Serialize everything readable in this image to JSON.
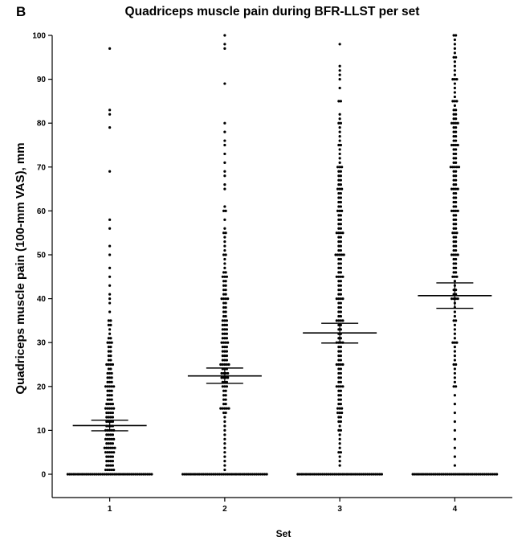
{
  "panel_letter": "B",
  "chart_data": {
    "type": "scatter",
    "subtype": "dot-plot with mean and 95% CI",
    "title": "Quadriceps muscle pain during BFR-LLST per set",
    "xlabel": "Set",
    "ylabel": "Quadriceps muscle pain (100-mm VAS), mm",
    "categories": [
      "1",
      "2",
      "3",
      "4"
    ],
    "ylim": [
      0,
      100
    ],
    "yticks": [
      0,
      10,
      20,
      30,
      40,
      50,
      60,
      70,
      80,
      90,
      100
    ],
    "grid": false,
    "legend": "none",
    "summary": [
      {
        "category": "1",
        "mean": 11.1,
        "ci_low": 9.9,
        "ci_high": 12.3
      },
      {
        "category": "2",
        "mean": 22.4,
        "ci_low": 20.7,
        "ci_high": 24.2
      },
      {
        "category": "3",
        "mean": 32.2,
        "ci_low": 29.9,
        "ci_high": 34.4
      },
      {
        "category": "4",
        "mean": 40.7,
        "ci_low": 37.8,
        "ci_high": 43.6
      }
    ],
    "series": [
      {
        "category": "1",
        "values": [
          [
            0,
            42
          ],
          [
            1,
            5
          ],
          [
            2,
            4
          ],
          [
            3,
            4
          ],
          [
            4,
            4
          ],
          [
            5,
            5
          ],
          [
            6,
            6
          ],
          [
            7,
            4
          ],
          [
            8,
            5
          ],
          [
            9,
            4
          ],
          [
            10,
            5
          ],
          [
            11,
            4
          ],
          [
            12,
            4
          ],
          [
            13,
            4
          ],
          [
            14,
            4
          ],
          [
            15,
            5
          ],
          [
            16,
            4
          ],
          [
            17,
            3
          ],
          [
            18,
            3
          ],
          [
            19,
            3
          ],
          [
            20,
            5
          ],
          [
            21,
            3
          ],
          [
            22,
            3
          ],
          [
            23,
            3
          ],
          [
            24,
            2
          ],
          [
            25,
            4
          ],
          [
            26,
            2
          ],
          [
            27,
            2
          ],
          [
            28,
            2
          ],
          [
            29,
            2
          ],
          [
            30,
            3
          ],
          [
            31,
            2
          ],
          [
            32,
            1
          ],
          [
            33,
            1
          ],
          [
            34,
            2
          ],
          [
            35,
            2
          ],
          [
            37,
            1
          ],
          [
            39,
            1
          ],
          [
            40,
            1
          ],
          [
            41,
            1
          ],
          [
            43,
            1
          ],
          [
            45,
            1
          ],
          [
            47,
            1
          ],
          [
            50,
            1
          ],
          [
            52,
            1
          ],
          [
            56,
            1
          ],
          [
            58,
            1
          ],
          [
            69,
            1
          ],
          [
            79,
            1
          ],
          [
            82,
            1
          ],
          [
            83,
            1
          ],
          [
            97,
            1
          ]
        ]
      },
      {
        "category": "2",
        "values": [
          [
            0,
            42
          ],
          [
            1,
            1
          ],
          [
            2,
            1
          ],
          [
            3,
            1
          ],
          [
            4,
            1
          ],
          [
            5,
            1
          ],
          [
            6,
            1
          ],
          [
            7,
            1
          ],
          [
            8,
            1
          ],
          [
            9,
            1
          ],
          [
            10,
            1
          ],
          [
            11,
            1
          ],
          [
            12,
            1
          ],
          [
            13,
            1
          ],
          [
            14,
            2
          ],
          [
            15,
            5
          ],
          [
            16,
            2
          ],
          [
            17,
            2
          ],
          [
            18,
            2
          ],
          [
            19,
            2
          ],
          [
            20,
            3
          ],
          [
            21,
            3
          ],
          [
            22,
            4
          ],
          [
            23,
            4
          ],
          [
            24,
            3
          ],
          [
            25,
            5
          ],
          [
            26,
            3
          ],
          [
            27,
            3
          ],
          [
            28,
            3
          ],
          [
            29,
            3
          ],
          [
            30,
            4
          ],
          [
            31,
            3
          ],
          [
            32,
            3
          ],
          [
            33,
            3
          ],
          [
            34,
            3
          ],
          [
            35,
            3
          ],
          [
            36,
            2
          ],
          [
            37,
            2
          ],
          [
            38,
            2
          ],
          [
            39,
            2
          ],
          [
            40,
            4
          ],
          [
            41,
            2
          ],
          [
            42,
            2
          ],
          [
            43,
            2
          ],
          [
            44,
            2
          ],
          [
            45,
            3
          ],
          [
            46,
            2
          ],
          [
            47,
            1
          ],
          [
            48,
            1
          ],
          [
            49,
            1
          ],
          [
            50,
            2
          ],
          [
            51,
            1
          ],
          [
            52,
            1
          ],
          [
            53,
            1
          ],
          [
            54,
            1
          ],
          [
            55,
            2
          ],
          [
            56,
            1
          ],
          [
            58,
            1
          ],
          [
            60,
            2
          ],
          [
            61,
            1
          ],
          [
            65,
            1
          ],
          [
            66,
            1
          ],
          [
            68,
            1
          ],
          [
            69,
            1
          ],
          [
            71,
            1
          ],
          [
            73,
            1
          ],
          [
            75,
            1
          ],
          [
            76,
            1
          ],
          [
            78,
            1
          ],
          [
            80,
            1
          ],
          [
            89,
            1
          ],
          [
            97,
            1
          ],
          [
            98,
            1
          ],
          [
            100,
            1
          ]
        ]
      },
      {
        "category": "3",
        "values": [
          [
            0,
            42
          ],
          [
            2,
            1
          ],
          [
            3,
            1
          ],
          [
            4,
            1
          ],
          [
            5,
            2
          ],
          [
            6,
            1
          ],
          [
            7,
            1
          ],
          [
            8,
            1
          ],
          [
            9,
            1
          ],
          [
            10,
            2
          ],
          [
            11,
            1
          ],
          [
            12,
            2
          ],
          [
            13,
            2
          ],
          [
            14,
            3
          ],
          [
            15,
            3
          ],
          [
            16,
            2
          ],
          [
            17,
            2
          ],
          [
            18,
            2
          ],
          [
            19,
            2
          ],
          [
            20,
            4
          ],
          [
            21,
            2
          ],
          [
            22,
            2
          ],
          [
            23,
            2
          ],
          [
            24,
            2
          ],
          [
            25,
            4
          ],
          [
            26,
            2
          ],
          [
            27,
            2
          ],
          [
            28,
            2
          ],
          [
            29,
            2
          ],
          [
            30,
            4
          ],
          [
            31,
            2
          ],
          [
            32,
            2
          ],
          [
            33,
            2
          ],
          [
            34,
            2
          ],
          [
            35,
            4
          ],
          [
            36,
            2
          ],
          [
            37,
            2
          ],
          [
            38,
            2
          ],
          [
            39,
            2
          ],
          [
            40,
            4
          ],
          [
            41,
            2
          ],
          [
            42,
            2
          ],
          [
            43,
            2
          ],
          [
            44,
            2
          ],
          [
            45,
            4
          ],
          [
            46,
            2
          ],
          [
            47,
            2
          ],
          [
            48,
            2
          ],
          [
            49,
            2
          ],
          [
            50,
            5
          ],
          [
            51,
            2
          ],
          [
            52,
            2
          ],
          [
            53,
            2
          ],
          [
            54,
            2
          ],
          [
            55,
            4
          ],
          [
            56,
            2
          ],
          [
            57,
            2
          ],
          [
            58,
            2
          ],
          [
            59,
            2
          ],
          [
            60,
            3
          ],
          [
            61,
            2
          ],
          [
            62,
            2
          ],
          [
            63,
            2
          ],
          [
            64,
            2
          ],
          [
            65,
            3
          ],
          [
            66,
            2
          ],
          [
            67,
            2
          ],
          [
            68,
            2
          ],
          [
            69,
            2
          ],
          [
            70,
            3
          ],
          [
            71,
            1
          ],
          [
            72,
            1
          ],
          [
            73,
            1
          ],
          [
            74,
            1
          ],
          [
            75,
            2
          ],
          [
            76,
            1
          ],
          [
            77,
            1
          ],
          [
            78,
            1
          ],
          [
            79,
            1
          ],
          [
            80,
            2
          ],
          [
            81,
            1
          ],
          [
            82,
            1
          ],
          [
            85,
            2
          ],
          [
            88,
            1
          ],
          [
            90,
            1
          ],
          [
            91,
            1
          ],
          [
            92,
            1
          ],
          [
            93,
            1
          ],
          [
            98,
            1
          ]
        ]
      },
      {
        "category": "4",
        "values": [
          [
            0,
            42
          ],
          [
            2,
            1
          ],
          [
            4,
            1
          ],
          [
            6,
            1
          ],
          [
            8,
            1
          ],
          [
            10,
            1
          ],
          [
            12,
            1
          ],
          [
            14,
            1
          ],
          [
            16,
            1
          ],
          [
            18,
            1
          ],
          [
            20,
            2
          ],
          [
            21,
            1
          ],
          [
            22,
            1
          ],
          [
            23,
            1
          ],
          [
            24,
            1
          ],
          [
            25,
            2
          ],
          [
            26,
            1
          ],
          [
            27,
            1
          ],
          [
            28,
            1
          ],
          [
            29,
            1
          ],
          [
            30,
            3
          ],
          [
            31,
            1
          ],
          [
            32,
            1
          ],
          [
            33,
            1
          ],
          [
            34,
            1
          ],
          [
            35,
            2
          ],
          [
            36,
            1
          ],
          [
            37,
            1
          ],
          [
            38,
            1
          ],
          [
            39,
            1
          ],
          [
            40,
            4
          ],
          [
            41,
            2
          ],
          [
            42,
            2
          ],
          [
            43,
            1
          ],
          [
            44,
            1
          ],
          [
            45,
            3
          ],
          [
            46,
            2
          ],
          [
            47,
            2
          ],
          [
            48,
            2
          ],
          [
            49,
            2
          ],
          [
            50,
            4
          ],
          [
            51,
            2
          ],
          [
            52,
            2
          ],
          [
            53,
            2
          ],
          [
            54,
            2
          ],
          [
            55,
            3
          ],
          [
            56,
            2
          ],
          [
            57,
            2
          ],
          [
            58,
            2
          ],
          [
            59,
            2
          ],
          [
            60,
            4
          ],
          [
            61,
            2
          ],
          [
            62,
            2
          ],
          [
            63,
            2
          ],
          [
            64,
            2
          ],
          [
            65,
            4
          ],
          [
            66,
            2
          ],
          [
            67,
            2
          ],
          [
            68,
            2
          ],
          [
            69,
            2
          ],
          [
            70,
            5
          ],
          [
            71,
            2
          ],
          [
            72,
            2
          ],
          [
            73,
            2
          ],
          [
            74,
            2
          ],
          [
            75,
            4
          ],
          [
            76,
            2
          ],
          [
            77,
            2
          ],
          [
            78,
            2
          ],
          [
            79,
            2
          ],
          [
            80,
            4
          ],
          [
            81,
            2
          ],
          [
            82,
            2
          ],
          [
            83,
            2
          ],
          [
            84,
            1
          ],
          [
            85,
            3
          ],
          [
            86,
            1
          ],
          [
            87,
            1
          ],
          [
            88,
            1
          ],
          [
            89,
            1
          ],
          [
            90,
            3
          ],
          [
            91,
            1
          ],
          [
            92,
            1
          ],
          [
            93,
            1
          ],
          [
            94,
            1
          ],
          [
            95,
            2
          ],
          [
            96,
            1
          ],
          [
            97,
            1
          ],
          [
            98,
            1
          ],
          [
            99,
            1
          ],
          [
            100,
            2
          ]
        ]
      }
    ]
  }
}
